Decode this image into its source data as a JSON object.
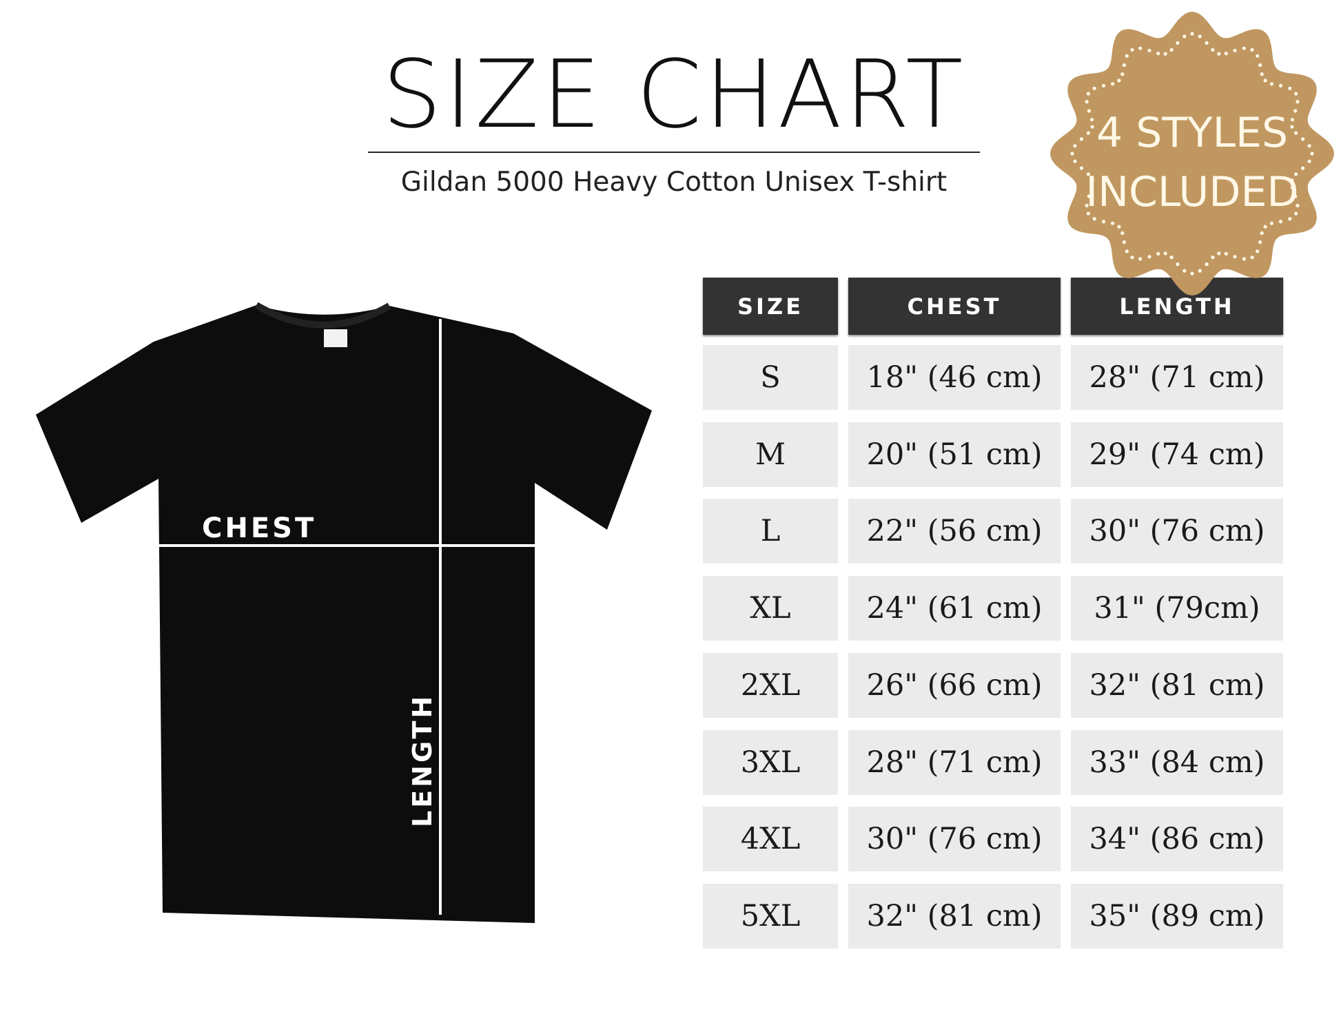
{
  "header": {
    "title": "SIZE CHART",
    "subtitle": "Gildan 5000 Heavy Cotton Unisex T-shirt"
  },
  "badge": {
    "line1": "4 STYLES",
    "line2": "INCLUDED",
    "color": "#c09760"
  },
  "diagram": {
    "chest_label": "CHEST",
    "length_label": "LENGTH",
    "shirt_color": "#0d0d0d"
  },
  "table": {
    "headers": [
      "SIZE",
      "CHEST",
      "LENGTH"
    ],
    "rows": [
      [
        "S",
        "18\" (46 cm)",
        "28\" (71 cm)"
      ],
      [
        "M",
        "20\" (51 cm)",
        "29\" (74 cm)"
      ],
      [
        "L",
        "22\" (56 cm)",
        "30\" (76 cm)"
      ],
      [
        "XL",
        "24\" (61 cm)",
        "31\" (79cm)"
      ],
      [
        "2XL",
        "26\" (66 cm)",
        "32\" (81 cm)"
      ],
      [
        "3XL",
        "28\" (71 cm)",
        "33\" (84 cm)"
      ],
      [
        "4XL",
        "30\" (76 cm)",
        "34\" (86 cm)"
      ],
      [
        "5XL",
        "32\" (81 cm)",
        "35\" (89 cm)"
      ]
    ]
  }
}
